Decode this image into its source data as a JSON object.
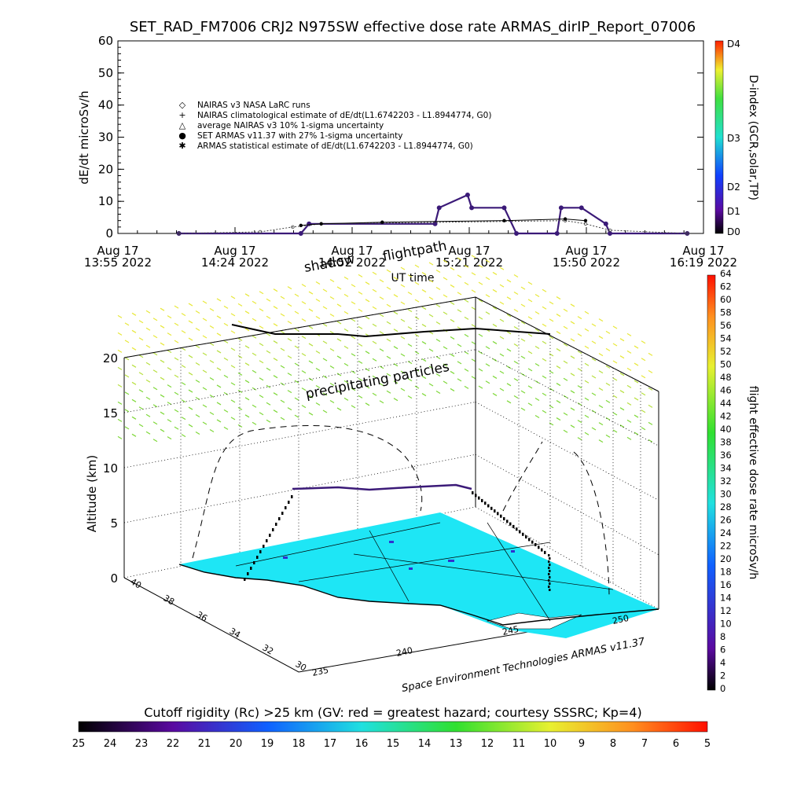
{
  "title": "SET_RAD_FM7006  CRJ2 N975SW effective dose rate ARMAS_dirIP_Report_07006",
  "top_chart": {
    "ylabel": "dE/dt microSv/h",
    "xlabel": "UT time",
    "y_ticks": [
      "0",
      "10",
      "20",
      "30",
      "40",
      "50",
      "60"
    ],
    "x_ticks": [
      {
        "line1": "Aug 17",
        "line2": "13:55 2022"
      },
      {
        "line1": "Aug 17",
        "line2": "14:24 2022"
      },
      {
        "line1": "Aug 17",
        "line2": "14:52 2022"
      },
      {
        "line1": "Aug 17",
        "line2": "15:21 2022"
      },
      {
        "line1": "Aug 17",
        "line2": "15:50 2022"
      },
      {
        "line1": "Aug 17",
        "line2": "16:19 2022"
      }
    ],
    "legend": [
      {
        "symbol": "◇",
        "label": "NAIRAS v3 NASA LaRC runs"
      },
      {
        "symbol": "+",
        "label": "NAIRAS climatological estimate of dE/dt(L1.6742203 - L1.8944774, G0)"
      },
      {
        "symbol": "△",
        "label": "average NAIRAS v3 10% 1-sigma uncertainty"
      },
      {
        "symbol": "●",
        "label": "SET ARMAS v11.37 with 27% 1-sigma uncertainty"
      },
      {
        "symbol": "✱",
        "label": "ARMAS statistical estimate of dE/dt(L1.6742203 - L1.8944774, G0)"
      }
    ],
    "colorbar": {
      "label": "D-index (GCR,solar,TP)",
      "ticks": [
        "D4",
        "D3",
        "D2",
        "D1",
        "D0"
      ]
    }
  },
  "chart_data": [
    {
      "type": "line",
      "title": "SET_RAD_FM7006  CRJ2 N975SW effective dose rate ARMAS_dirIP_Report_07006",
      "xlabel": "UT time",
      "ylabel": "dE/dt microSv/h",
      "ylim": [
        0,
        60
      ],
      "xlim": [
        "13:55",
        "16:19"
      ],
      "grid": false,
      "legend_position": "upper-left",
      "series": [
        {
          "name": "SET ARMAS v11.37 with 27% 1-sigma uncertainty",
          "x": [
            "14:10",
            "14:40",
            "14:42",
            "15:13",
            "15:14",
            "15:21",
            "15:22",
            "15:30",
            "15:33",
            "15:43",
            "15:44",
            "15:49",
            "15:55",
            "15:56",
            "16:15"
          ],
          "y": [
            0,
            0,
            3,
            3,
            8,
            12,
            8,
            8,
            0,
            0,
            8,
            8,
            3,
            0,
            0
          ]
        },
        {
          "name": "NAIRAS v3 NASA LaRC runs",
          "x": [
            "14:10",
            "14:30",
            "14:38",
            "14:45",
            "15:45",
            "15:50",
            "15:56",
            "16:15"
          ],
          "y": [
            0,
            0.5,
            2,
            3,
            4,
            3,
            1,
            0
          ]
        },
        {
          "name": "ARMAS statistical estimate of dE/dt(L1.6742203 - L1.8944774, G0)",
          "x": [
            "14:40",
            "14:45",
            "15:00",
            "15:30",
            "15:45",
            "15:50"
          ],
          "y": [
            2.5,
            3,
            3.5,
            4,
            4.5,
            4
          ]
        }
      ]
    },
    {
      "type": "scatter",
      "title": "",
      "xlabel": "",
      "ylabel": "Altitude (km)",
      "zlim": [
        0,
        20
      ],
      "legend_position": "none",
      "series": [
        {
          "name": "flight path",
          "x": [
            -236.0,
            -237.5,
            -239.0,
            -241.5,
            -244.5,
            -247.0,
            -249.0
          ],
          "y": [
            37.0,
            37.2,
            37.0,
            37.5,
            37.8,
            37.6,
            37.2
          ],
          "z": [
            0,
            8.5,
            8.6,
            8.4,
            8.5,
            8.3,
            0
          ]
        }
      ]
    }
  ],
  "scene": {
    "label_shadow": "shadow",
    "label_flightpath": "flightpath",
    "label_particles": "precipitating particles",
    "credit": "Space Environment Technologies ARMAS v11.37",
    "z_ticks": [
      "0",
      "5",
      "10",
      "15",
      "20"
    ],
    "zlabel": "Altitude (km)",
    "lat_ticks": [
      "40",
      "38",
      "36",
      "34",
      "32",
      "30"
    ],
    "lon_ticks": [
      "235",
      "240",
      "245",
      "250"
    ],
    "colorbar": {
      "label": "flight effective dose rate microSv/h",
      "ticks": [
        "0",
        "2",
        "4",
        "6",
        "8",
        "10",
        "12",
        "14",
        "16",
        "18",
        "20",
        "22",
        "24",
        "26",
        "28",
        "30",
        "32",
        "34",
        "36",
        "38",
        "40",
        "42",
        "44",
        "46",
        "48",
        "50",
        "52",
        "54",
        "56",
        "58",
        "60",
        "62",
        "64"
      ]
    }
  },
  "bottom_bar": {
    "label": "Cutoff rigidity (Rc) >25 km (GV: red = greatest hazard; courtesy SSSRC; Kp=4)",
    "ticks": [
      "25",
      "24",
      "23",
      "22",
      "21",
      "20",
      "19",
      "18",
      "17",
      "16",
      "15",
      "14",
      "13",
      "12",
      "11",
      "10",
      "9",
      "8",
      "7",
      "6",
      "5"
    ]
  },
  "colors": {
    "armas": "#3b1a78",
    "ocean": "#1ee6f5",
    "land": "#ffffff"
  }
}
